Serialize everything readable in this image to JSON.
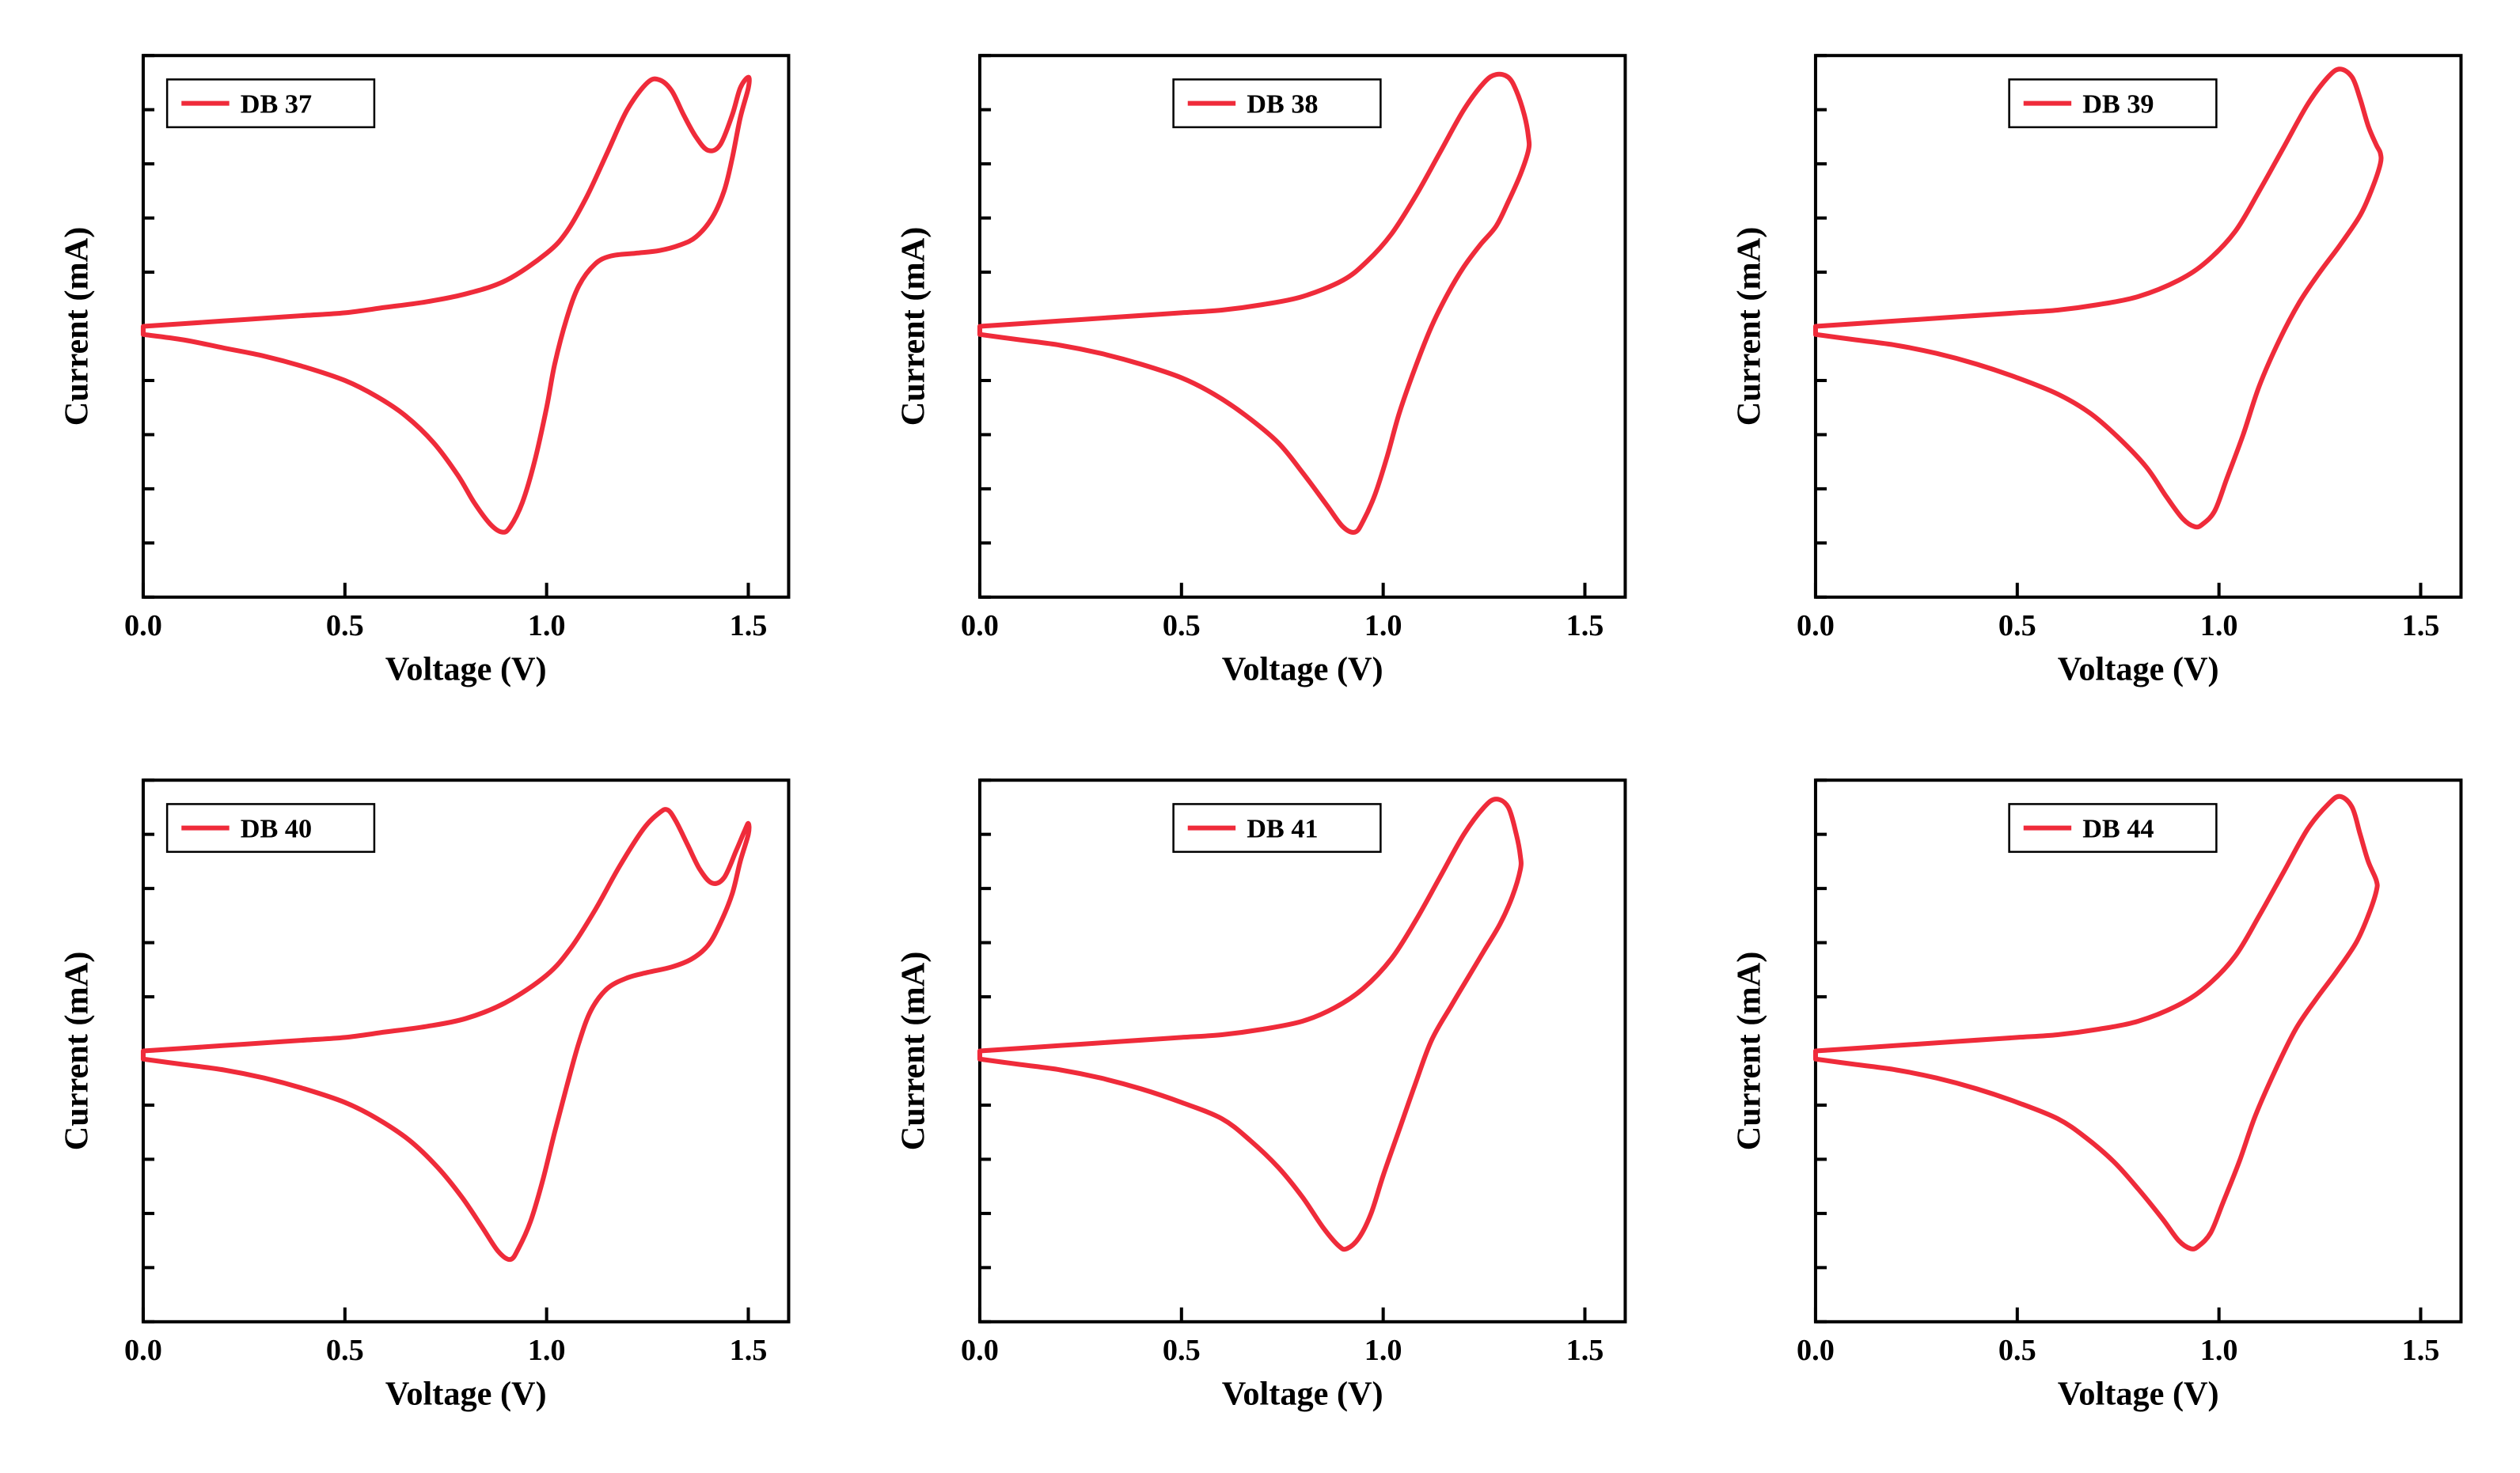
{
  "figure": {
    "background_color": "#ffffff",
    "rows": 2,
    "cols": 3,
    "gap_x": 70,
    "gap_y": 50
  },
  "common": {
    "xlabel": "Voltage (V)",
    "ylabel": "Current (mA)",
    "xlim": [
      0.0,
      1.6
    ],
    "ylim": [
      -1.0,
      1.0
    ],
    "xticks": [
      0.0,
      0.5,
      1.0,
      1.5
    ],
    "xtick_labels": [
      "0.0",
      "0.5",
      "1.0",
      "1.5"
    ],
    "yticks_minor": [
      -1.0,
      -0.8,
      -0.6,
      -0.4,
      -0.2,
      0.0,
      0.2,
      0.4,
      0.6,
      0.8,
      1.0
    ],
    "axis_color": "#000000",
    "axis_linewidth": 4,
    "tick_length_major": 18,
    "tick_length_minor": 14,
    "tick_linewidth": 4,
    "tick_label_fontsize": 38,
    "axis_label_fontsize": 42,
    "axis_label_fontweight": "bold",
    "series_color": "#ef2b3a",
    "series_linewidth": 6,
    "legend_box_color": "#000000",
    "legend_box_linewidth": 2.5,
    "legend_line_length": 60,
    "legend_fontsize": 34,
    "legend_fontweight": "bold",
    "plot_border_linewidth": 4
  },
  "panels": [
    {
      "id": "db37",
      "legend_label": "DB 37",
      "legend_pos": "top-left",
      "x_max_data": 1.5,
      "curve": [
        [
          0.0,
          0.0
        ],
        [
          0.1,
          0.01
        ],
        [
          0.2,
          0.02
        ],
        [
          0.3,
          0.03
        ],
        [
          0.4,
          0.04
        ],
        [
          0.5,
          0.05
        ],
        [
          0.6,
          0.07
        ],
        [
          0.7,
          0.09
        ],
        [
          0.8,
          0.12
        ],
        [
          0.9,
          0.17
        ],
        [
          1.0,
          0.27
        ],
        [
          1.05,
          0.35
        ],
        [
          1.1,
          0.48
        ],
        [
          1.15,
          0.64
        ],
        [
          1.2,
          0.8
        ],
        [
          1.25,
          0.9
        ],
        [
          1.28,
          0.91
        ],
        [
          1.31,
          0.87
        ],
        [
          1.34,
          0.78
        ],
        [
          1.37,
          0.7
        ],
        [
          1.4,
          0.65
        ],
        [
          1.43,
          0.67
        ],
        [
          1.46,
          0.78
        ],
        [
          1.48,
          0.88
        ],
        [
          1.5,
          0.92
        ],
        [
          1.5,
          0.88
        ],
        [
          1.48,
          0.77
        ],
        [
          1.46,
          0.62
        ],
        [
          1.44,
          0.5
        ],
        [
          1.41,
          0.4
        ],
        [
          1.37,
          0.33
        ],
        [
          1.33,
          0.3
        ],
        [
          1.28,
          0.28
        ],
        [
          1.22,
          0.27
        ],
        [
          1.16,
          0.26
        ],
        [
          1.12,
          0.23
        ],
        [
          1.08,
          0.15
        ],
        [
          1.05,
          0.03
        ],
        [
          1.02,
          -0.14
        ],
        [
          1.0,
          -0.3
        ],
        [
          0.97,
          -0.5
        ],
        [
          0.94,
          -0.65
        ],
        [
          0.91,
          -0.74
        ],
        [
          0.89,
          -0.76
        ],
        [
          0.86,
          -0.73
        ],
        [
          0.82,
          -0.65
        ],
        [
          0.78,
          -0.55
        ],
        [
          0.72,
          -0.43
        ],
        [
          0.65,
          -0.33
        ],
        [
          0.58,
          -0.26
        ],
        [
          0.5,
          -0.2
        ],
        [
          0.4,
          -0.15
        ],
        [
          0.3,
          -0.11
        ],
        [
          0.2,
          -0.08
        ],
        [
          0.1,
          -0.05
        ],
        [
          0.0,
          -0.03
        ]
      ]
    },
    {
      "id": "db38",
      "legend_label": "DB 38",
      "legend_pos": "top-center",
      "x_max_data": 1.36,
      "curve": [
        [
          0.0,
          0.0
        ],
        [
          0.1,
          0.01
        ],
        [
          0.2,
          0.02
        ],
        [
          0.3,
          0.03
        ],
        [
          0.4,
          0.04
        ],
        [
          0.5,
          0.05
        ],
        [
          0.6,
          0.06
        ],
        [
          0.7,
          0.08
        ],
        [
          0.8,
          0.11
        ],
        [
          0.9,
          0.17
        ],
        [
          0.96,
          0.24
        ],
        [
          1.02,
          0.34
        ],
        [
          1.08,
          0.48
        ],
        [
          1.14,
          0.64
        ],
        [
          1.2,
          0.8
        ],
        [
          1.25,
          0.9
        ],
        [
          1.28,
          0.93
        ],
        [
          1.31,
          0.92
        ],
        [
          1.33,
          0.87
        ],
        [
          1.35,
          0.78
        ],
        [
          1.36,
          0.7
        ],
        [
          1.36,
          0.65
        ],
        [
          1.34,
          0.56
        ],
        [
          1.31,
          0.46
        ],
        [
          1.28,
          0.37
        ],
        [
          1.24,
          0.3
        ],
        [
          1.2,
          0.22
        ],
        [
          1.16,
          0.12
        ],
        [
          1.12,
          0.0
        ],
        [
          1.08,
          -0.15
        ],
        [
          1.04,
          -0.32
        ],
        [
          1.01,
          -0.48
        ],
        [
          0.98,
          -0.62
        ],
        [
          0.95,
          -0.72
        ],
        [
          0.93,
          -0.76
        ],
        [
          0.9,
          -0.74
        ],
        [
          0.86,
          -0.66
        ],
        [
          0.8,
          -0.54
        ],
        [
          0.74,
          -0.43
        ],
        [
          0.66,
          -0.33
        ],
        [
          0.58,
          -0.25
        ],
        [
          0.5,
          -0.19
        ],
        [
          0.4,
          -0.14
        ],
        [
          0.3,
          -0.1
        ],
        [
          0.2,
          -0.07
        ],
        [
          0.1,
          -0.05
        ],
        [
          0.0,
          -0.03
        ]
      ]
    },
    {
      "id": "db39",
      "legend_label": "DB 39",
      "legend_pos": "top-center",
      "x_max_data": 1.4,
      "curve": [
        [
          0.0,
          0.0
        ],
        [
          0.1,
          0.01
        ],
        [
          0.2,
          0.02
        ],
        [
          0.3,
          0.03
        ],
        [
          0.4,
          0.04
        ],
        [
          0.5,
          0.05
        ],
        [
          0.6,
          0.06
        ],
        [
          0.7,
          0.08
        ],
        [
          0.8,
          0.11
        ],
        [
          0.9,
          0.17
        ],
        [
          0.97,
          0.24
        ],
        [
          1.04,
          0.35
        ],
        [
          1.1,
          0.5
        ],
        [
          1.16,
          0.66
        ],
        [
          1.22,
          0.82
        ],
        [
          1.27,
          0.92
        ],
        [
          1.3,
          0.95
        ],
        [
          1.33,
          0.92
        ],
        [
          1.35,
          0.84
        ],
        [
          1.37,
          0.74
        ],
        [
          1.39,
          0.67
        ],
        [
          1.4,
          0.64
        ],
        [
          1.4,
          0.6
        ],
        [
          1.38,
          0.51
        ],
        [
          1.35,
          0.41
        ],
        [
          1.3,
          0.3
        ],
        [
          1.25,
          0.2
        ],
        [
          1.2,
          0.09
        ],
        [
          1.15,
          -0.05
        ],
        [
          1.1,
          -0.22
        ],
        [
          1.06,
          -0.4
        ],
        [
          1.02,
          -0.56
        ],
        [
          0.99,
          -0.68
        ],
        [
          0.96,
          -0.73
        ],
        [
          0.94,
          -0.74
        ],
        [
          0.91,
          -0.71
        ],
        [
          0.87,
          -0.63
        ],
        [
          0.82,
          -0.52
        ],
        [
          0.75,
          -0.41
        ],
        [
          0.68,
          -0.32
        ],
        [
          0.6,
          -0.25
        ],
        [
          0.5,
          -0.19
        ],
        [
          0.4,
          -0.14
        ],
        [
          0.3,
          -0.1
        ],
        [
          0.2,
          -0.07
        ],
        [
          0.1,
          -0.05
        ],
        [
          0.0,
          -0.03
        ]
      ]
    },
    {
      "id": "db40",
      "legend_label": "DB 40",
      "legend_pos": "top-left",
      "x_max_data": 1.5,
      "curve": [
        [
          0.0,
          0.0
        ],
        [
          0.1,
          0.01
        ],
        [
          0.2,
          0.02
        ],
        [
          0.3,
          0.03
        ],
        [
          0.4,
          0.04
        ],
        [
          0.5,
          0.05
        ],
        [
          0.6,
          0.07
        ],
        [
          0.7,
          0.09
        ],
        [
          0.8,
          0.12
        ],
        [
          0.9,
          0.18
        ],
        [
          1.0,
          0.28
        ],
        [
          1.06,
          0.38
        ],
        [
          1.12,
          0.52
        ],
        [
          1.18,
          0.68
        ],
        [
          1.24,
          0.82
        ],
        [
          1.28,
          0.88
        ],
        [
          1.3,
          0.89
        ],
        [
          1.32,
          0.85
        ],
        [
          1.35,
          0.76
        ],
        [
          1.38,
          0.67
        ],
        [
          1.41,
          0.62
        ],
        [
          1.44,
          0.64
        ],
        [
          1.47,
          0.74
        ],
        [
          1.49,
          0.81
        ],
        [
          1.5,
          0.84
        ],
        [
          1.5,
          0.8
        ],
        [
          1.48,
          0.7
        ],
        [
          1.46,
          0.58
        ],
        [
          1.43,
          0.47
        ],
        [
          1.4,
          0.39
        ],
        [
          1.36,
          0.34
        ],
        [
          1.31,
          0.31
        ],
        [
          1.25,
          0.29
        ],
        [
          1.2,
          0.27
        ],
        [
          1.15,
          0.23
        ],
        [
          1.11,
          0.15
        ],
        [
          1.08,
          0.03
        ],
        [
          1.05,
          -0.13
        ],
        [
          1.02,
          -0.3
        ],
        [
          0.99,
          -0.48
        ],
        [
          0.96,
          -0.63
        ],
        [
          0.93,
          -0.73
        ],
        [
          0.91,
          -0.77
        ],
        [
          0.88,
          -0.74
        ],
        [
          0.84,
          -0.65
        ],
        [
          0.79,
          -0.54
        ],
        [
          0.73,
          -0.43
        ],
        [
          0.66,
          -0.33
        ],
        [
          0.58,
          -0.25
        ],
        [
          0.5,
          -0.19
        ],
        [
          0.4,
          -0.14
        ],
        [
          0.3,
          -0.1
        ],
        [
          0.2,
          -0.07
        ],
        [
          0.1,
          -0.05
        ],
        [
          0.0,
          -0.03
        ]
      ]
    },
    {
      "id": "db41",
      "legend_label": "DB 41",
      "legend_pos": "top-center",
      "x_max_data": 1.34,
      "curve": [
        [
          0.0,
          0.0
        ],
        [
          0.1,
          0.01
        ],
        [
          0.2,
          0.02
        ],
        [
          0.3,
          0.03
        ],
        [
          0.4,
          0.04
        ],
        [
          0.5,
          0.05
        ],
        [
          0.6,
          0.06
        ],
        [
          0.7,
          0.08
        ],
        [
          0.8,
          0.11
        ],
        [
          0.88,
          0.16
        ],
        [
          0.95,
          0.23
        ],
        [
          1.02,
          0.34
        ],
        [
          1.08,
          0.48
        ],
        [
          1.14,
          0.64
        ],
        [
          1.2,
          0.8
        ],
        [
          1.25,
          0.9
        ],
        [
          1.28,
          0.93
        ],
        [
          1.31,
          0.9
        ],
        [
          1.33,
          0.8
        ],
        [
          1.34,
          0.72
        ],
        [
          1.34,
          0.67
        ],
        [
          1.32,
          0.57
        ],
        [
          1.29,
          0.47
        ],
        [
          1.25,
          0.37
        ],
        [
          1.21,
          0.27
        ],
        [
          1.17,
          0.17
        ],
        [
          1.12,
          0.04
        ],
        [
          1.08,
          -0.12
        ],
        [
          1.04,
          -0.29
        ],
        [
          1.0,
          -0.46
        ],
        [
          0.97,
          -0.6
        ],
        [
          0.94,
          -0.69
        ],
        [
          0.91,
          -0.73
        ],
        [
          0.89,
          -0.72
        ],
        [
          0.85,
          -0.65
        ],
        [
          0.8,
          -0.54
        ],
        [
          0.74,
          -0.43
        ],
        [
          0.67,
          -0.33
        ],
        [
          0.6,
          -0.25
        ],
        [
          0.5,
          -0.19
        ],
        [
          0.4,
          -0.14
        ],
        [
          0.3,
          -0.1
        ],
        [
          0.2,
          -0.07
        ],
        [
          0.1,
          -0.05
        ],
        [
          0.0,
          -0.03
        ]
      ]
    },
    {
      "id": "db44",
      "legend_label": "DB 44",
      "legend_pos": "top-center",
      "x_max_data": 1.39,
      "curve": [
        [
          0.0,
          0.0
        ],
        [
          0.1,
          0.01
        ],
        [
          0.2,
          0.02
        ],
        [
          0.3,
          0.03
        ],
        [
          0.4,
          0.04
        ],
        [
          0.5,
          0.05
        ],
        [
          0.6,
          0.06
        ],
        [
          0.7,
          0.08
        ],
        [
          0.8,
          0.11
        ],
        [
          0.9,
          0.17
        ],
        [
          0.97,
          0.24
        ],
        [
          1.04,
          0.35
        ],
        [
          1.1,
          0.5
        ],
        [
          1.16,
          0.66
        ],
        [
          1.22,
          0.82
        ],
        [
          1.27,
          0.91
        ],
        [
          1.3,
          0.94
        ],
        [
          1.33,
          0.9
        ],
        [
          1.35,
          0.8
        ],
        [
          1.37,
          0.7
        ],
        [
          1.39,
          0.63
        ],
        [
          1.39,
          0.59
        ],
        [
          1.37,
          0.5
        ],
        [
          1.34,
          0.4
        ],
        [
          1.29,
          0.29
        ],
        [
          1.24,
          0.19
        ],
        [
          1.19,
          0.08
        ],
        [
          1.14,
          -0.07
        ],
        [
          1.09,
          -0.24
        ],
        [
          1.05,
          -0.41
        ],
        [
          1.01,
          -0.56
        ],
        [
          0.98,
          -0.67
        ],
        [
          0.95,
          -0.72
        ],
        [
          0.93,
          -0.73
        ],
        [
          0.9,
          -0.7
        ],
        [
          0.86,
          -0.62
        ],
        [
          0.8,
          -0.51
        ],
        [
          0.74,
          -0.41
        ],
        [
          0.67,
          -0.32
        ],
        [
          0.6,
          -0.25
        ],
        [
          0.5,
          -0.19
        ],
        [
          0.4,
          -0.14
        ],
        [
          0.3,
          -0.1
        ],
        [
          0.2,
          -0.07
        ],
        [
          0.1,
          -0.05
        ],
        [
          0.0,
          -0.03
        ]
      ]
    }
  ]
}
